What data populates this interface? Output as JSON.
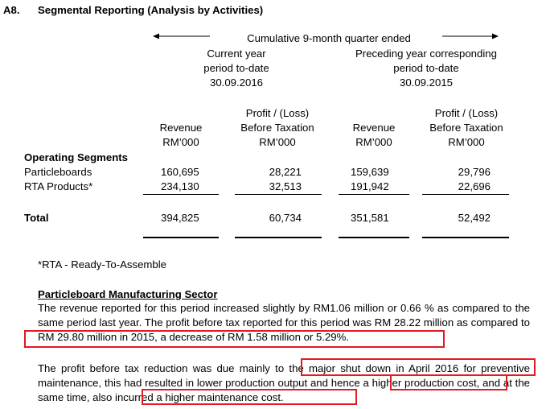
{
  "section": {
    "number": "A8.",
    "title": "Segmental Reporting (Analysis by Activities)"
  },
  "header": {
    "period_caption": "Cumulative 9-month quarter ended",
    "current_year_line1": "Current year",
    "current_year_line2": "period to-date",
    "current_year_date": "30.09.2016",
    "preceding_year_line1": "Preceding year corresponding",
    "preceding_year_line2": "period to-date",
    "preceding_year_date": "30.09.2015"
  },
  "columns": {
    "revenue": "Revenue",
    "profit_line1": "Profit / (Loss)",
    "profit_line2": "Before Taxation",
    "unit": "RM’000"
  },
  "table": {
    "segments_heading": "Operating Segments",
    "rows": [
      {
        "label": "Particleboards",
        "cur_revenue": "160,695",
        "cur_profit": "28,221",
        "prev_revenue": "159,639",
        "prev_profit": "29,796"
      },
      {
        "label": "RTA Products*",
        "cur_revenue": "234,130",
        "cur_profit": "32,513",
        "prev_revenue": "191,942",
        "prev_profit": "22,696"
      }
    ],
    "total": {
      "label": "Total",
      "cur_revenue": "394,825",
      "cur_profit": "60,734",
      "prev_revenue": "351,581",
      "prev_profit": "52,492"
    }
  },
  "footnote": "*RTA - Ready-To-Assemble",
  "sector": {
    "heading": "Particleboard Manufacturing Sector",
    "para1_part1": "The revenue reported for this period increased slightly by RM1.06 million or 0.66 % as compared to the same period last year. The profit before tax reported for this period was RM 28.22 million as ",
    "para1_part2": "compared to RM 29.80 million in 2015, a decrease of RM 1.58 million or 5.29%.",
    "para2_part1": "The profit before tax reduction was due mainly to th",
    "para2_part2": "e major shut down in April 2016 for preventive maintenance, this had resulted in lower production output and hence a higher production cost, and at the same time, also incurred a higher maintenance cost."
  },
  "colors": {
    "highlight": "#e11b22",
    "text": "#000000"
  }
}
